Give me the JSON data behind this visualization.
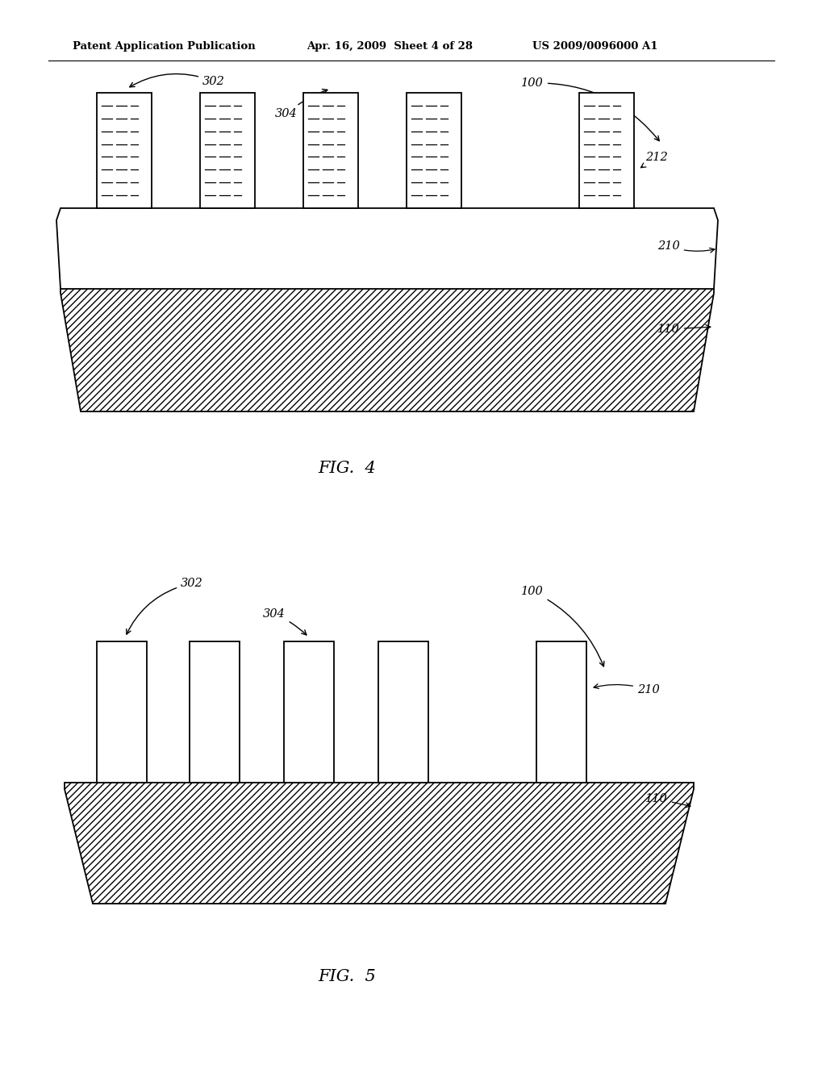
{
  "bg_color": "#ffffff",
  "line_color": "#000000",
  "header_text1": "Patent Application Publication",
  "header_text2": "Apr. 16, 2009  Sheet 4 of 28",
  "header_text3": "US 2009/0096000 A1",
  "fig4_label": "FIG.  4",
  "fig5_label": "FIG.  5",
  "label_fs": 10.5
}
